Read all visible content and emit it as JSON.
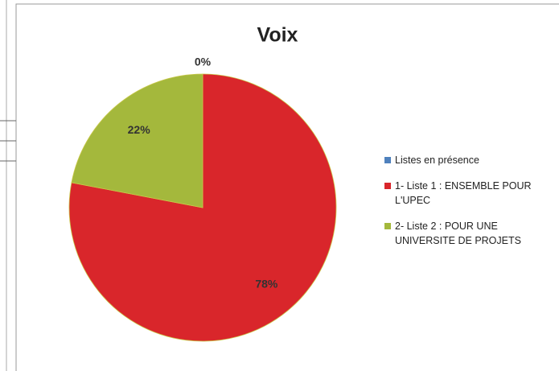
{
  "chart_data": {
    "type": "pie",
    "title": "Voix",
    "categories": [
      "Listes en présence",
      "1- Liste 1 : ENSEMBLE POUR L'UPEC",
      "2- Liste 2 : POUR UNE UNIVERSITE DE PROJETS"
    ],
    "values": [
      0,
      78,
      22
    ],
    "value_labels": [
      "0%",
      "78%",
      "22%"
    ],
    "colors": [
      "#4f81bd",
      "#d9262b",
      "#a4b83c"
    ],
    "legend": "right"
  }
}
